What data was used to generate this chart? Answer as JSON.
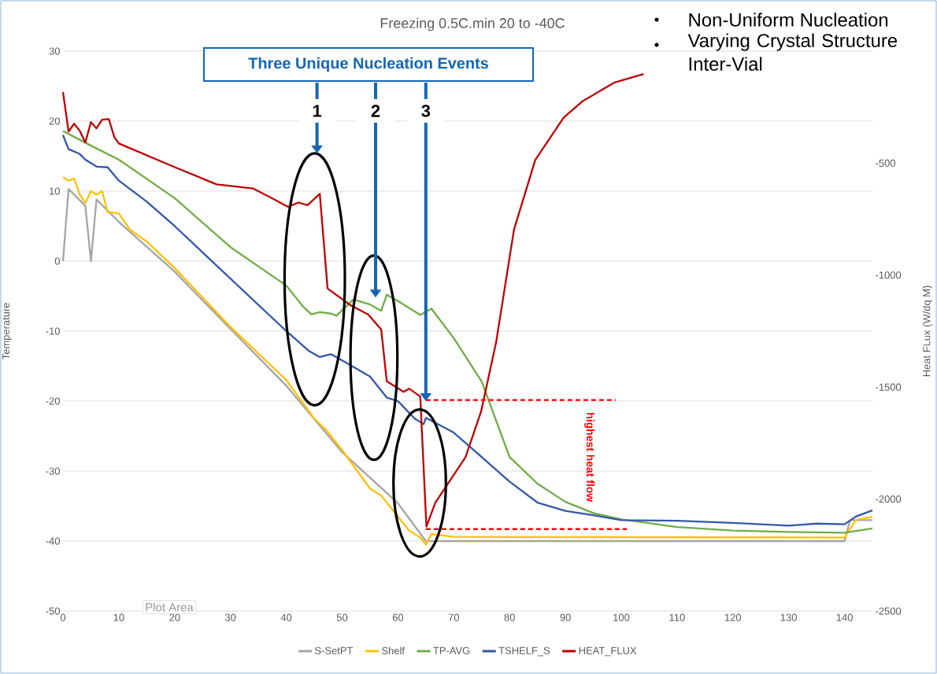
{
  "chart_data": {
    "type": "line",
    "title": "Freezing 0.5C.min 20 to -40C",
    "ylabel": "Temperature",
    "y2label": "Heat FLux (W/dq M)",
    "annotations": [
      "Three Unique Nucleation Events",
      "1",
      "2",
      "3",
      "highest heat flow",
      "Non-Uniform Nucleation",
      "Varying Crystal Structure Inter-Vial",
      "Plot Area"
    ],
    "xlim": [
      0,
      145
    ],
    "xticks": [
      0,
      10,
      20,
      30,
      40,
      50,
      60,
      70,
      80,
      90,
      100,
      110,
      120,
      130,
      140
    ],
    "ylim": [
      -50,
      30
    ],
    "yticks": [
      -50,
      -40,
      -30,
      -20,
      -10,
      0,
      10,
      20,
      30
    ],
    "y2lim": [
      -2500,
      0
    ],
    "y2ticks": [
      -2500,
      -2000,
      -1500,
      -1000,
      -500
    ],
    "grid": "y",
    "legend": "bottom",
    "series": [
      {
        "name": "S-SetPT",
        "color": "#a5a5a5",
        "x": [
          0,
          1,
          4,
          5,
          6,
          10,
          20,
          30,
          40,
          50,
          60,
          65,
          140,
          141,
          145
        ],
        "values": [
          0,
          10.3,
          7.9,
          0,
          8.8,
          5.6,
          -1.5,
          -9.7,
          -17.8,
          -27.3,
          -34.6,
          -40,
          -40,
          -37,
          -37
        ]
      },
      {
        "name": "Shelf",
        "color": "#ffc000",
        "x": [
          0,
          1,
          2,
          3,
          4,
          5,
          6,
          7,
          8,
          10,
          12,
          15,
          20,
          30,
          40,
          45,
          47,
          50,
          55,
          57,
          60,
          62,
          64,
          65,
          66,
          70,
          140,
          142,
          145
        ],
        "values": [
          12,
          11.5,
          11.8,
          9.5,
          8.3,
          10,
          9.5,
          10,
          7,
          6.8,
          4.5,
          2.8,
          -1,
          -9.4,
          -17,
          -22.5,
          -24,
          -27,
          -32.5,
          -33.5,
          -36.5,
          -38.5,
          -39.5,
          -40.5,
          -39,
          -39.4,
          -39.5,
          -37,
          -36.5
        ]
      },
      {
        "name": "TP-AVG",
        "color": "#70ad47",
        "x": [
          0,
          5,
          10,
          20,
          30,
          40,
          43,
          44.5,
          46,
          48,
          49,
          52,
          55,
          57,
          58,
          60,
          64,
          66,
          70,
          75,
          80,
          85,
          90,
          95,
          100,
          110,
          120,
          130,
          140,
          145
        ],
        "values": [
          18.6,
          16.5,
          14.5,
          9,
          2,
          -3.5,
          -6.5,
          -7.6,
          -7.3,
          -7.5,
          -7.8,
          -5.5,
          -6.2,
          -7.1,
          -4.8,
          -5.7,
          -7.7,
          -6.8,
          -11,
          -17.2,
          -28,
          -31.8,
          -34.4,
          -36,
          -36.9,
          -38,
          -38.5,
          -38.7,
          -38.8,
          -38.2
        ]
      },
      {
        "name": "TSHELF_S",
        "color": "#3358a8",
        "x": [
          0,
          1,
          3,
          4,
          6,
          8,
          10,
          15,
          20,
          30,
          40,
          44,
          46,
          48,
          50,
          55,
          58,
          60,
          63,
          64.6,
          65,
          70,
          75,
          80,
          85,
          90,
          95,
          100,
          110,
          120,
          130,
          135,
          140,
          142,
          145
        ],
        "values": [
          18,
          16,
          15.3,
          14.5,
          13.5,
          13.4,
          11.5,
          8.5,
          5,
          -2.5,
          -10,
          -12.8,
          -13.7,
          -13.3,
          -14.2,
          -16.5,
          -19.5,
          -20,
          -22.5,
          -23.3,
          -22.4,
          -24.5,
          -28,
          -31.5,
          -34.5,
          -35.7,
          -36.3,
          -37,
          -37.1,
          -37.4,
          -37.8,
          -37.5,
          -37.6,
          -36.5,
          -35.6
        ]
      },
      {
        "name": "HEAT_FLUX",
        "color": "#c00000",
        "axis": "y2",
        "x": [
          0,
          1,
          2,
          3,
          4,
          5,
          6,
          7,
          8.2,
          9.2,
          10,
          20,
          27.5,
          34,
          37.3,
          40.3,
          42.2,
          43.8,
          46,
          47.4,
          51.5,
          54.7,
          57,
          58,
          61,
          62,
          64,
          65.1,
          66.7,
          72.1,
          74.9,
          77.6,
          80.8,
          84.6,
          89.7,
          93,
          98.7,
          104
        ],
        "values": [
          -183,
          -359,
          -324,
          -356,
          -408,
          -317,
          -345,
          -306,
          -303,
          -384,
          -412,
          -518,
          -595,
          -613,
          -655,
          -695,
          -676,
          -688,
          -637,
          -1060,
          -1134,
          -1176,
          -1243,
          -1474,
          -1521,
          -1507,
          -1542,
          -2123,
          -2016,
          -1813,
          -1609,
          -1298,
          -796,
          -486,
          -296,
          -225,
          -141,
          -102
        ]
      },
      {
        "color": "#ff0000",
        "axis": "y2",
        "line_style": "dashed",
        "x": [
          65,
          99
        ],
        "values": [
          -1558,
          -1558
        ]
      },
      {
        "color": "#ff0000",
        "axis": "y2",
        "line_style": "dashed",
        "x": [
          65,
          101
        ],
        "values": [
          -2134,
          -2134
        ]
      }
    ]
  }
}
